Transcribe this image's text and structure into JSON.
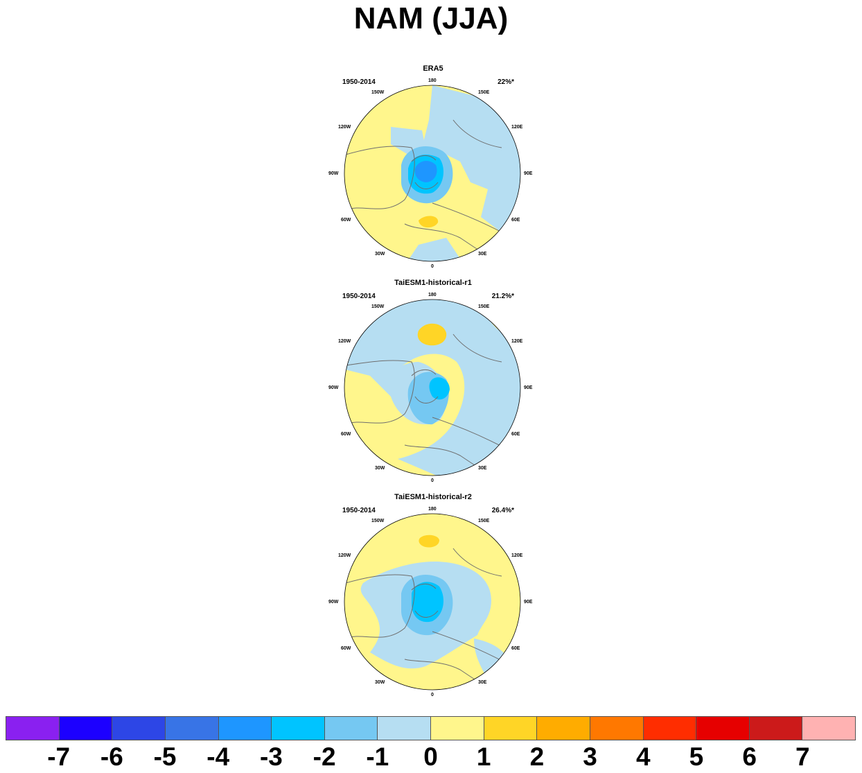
{
  "title": "NAM (JJA)",
  "panels": [
    {
      "label": "ERA5",
      "period": "1950-2014",
      "variance": "22%*"
    },
    {
      "label": "TaiESM1-historical-r1",
      "period": "1950-2014",
      "variance": "21.2%*"
    },
    {
      "label": "TaiESM1-historical-r2",
      "period": "1950-2014",
      "variance": "26.4%*"
    }
  ],
  "lon_labels": {
    "180": "180",
    "150E": "150E",
    "120E": "120E",
    "90E": "90E",
    "60E": "60E",
    "30E": "30E",
    "0": "0",
    "30W": "30W",
    "60W": "60W",
    "90W": "90W",
    "120W": "120W",
    "150W": "150W"
  },
  "colorbar": {
    "colors": [
      "#8a20f0",
      "#1c00ff",
      "#2d46e6",
      "#3874e6",
      "#1e96ff",
      "#00c4ff",
      "#75c8f2",
      "#b6def2",
      "#fff68c",
      "#ffd526",
      "#ffac00",
      "#ff7800",
      "#ff2d00",
      "#e60000",
      "#cc1a1a",
      "#ffb2b2"
    ],
    "labels": [
      "-7",
      "-6",
      "-5",
      "-4",
      "-3",
      "-2",
      "-1",
      "0",
      "1",
      "2",
      "3",
      "4",
      "5",
      "6",
      "7"
    ]
  },
  "colors": {
    "land_outline": "#6e6e6e",
    "positive_fill": "#fff68c",
    "negative_fill": "#b6def2"
  }
}
